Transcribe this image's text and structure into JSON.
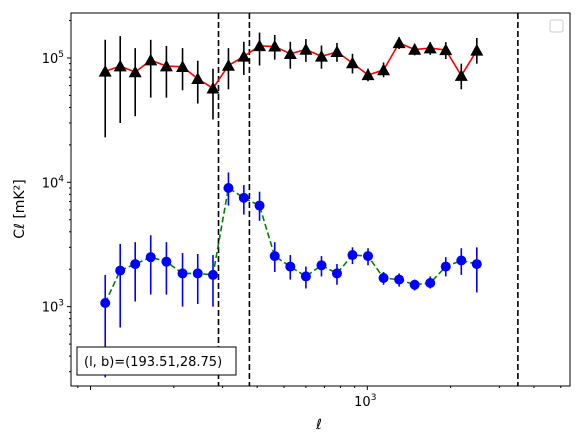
{
  "chart_data": {
    "type": "scatter",
    "title": "",
    "xlabel": "ℓ",
    "ylabel": "Cℓ  [mK²]",
    "xscale": "log",
    "yscale": "log",
    "xlim": [
      85,
      5400
    ],
    "ylim": [
      230,
      230000
    ],
    "x_tick_labels": [
      {
        "value": 1000,
        "mant": "10",
        "exp": "3"
      }
    ],
    "y_tick_labels": [
      {
        "value": 1000,
        "mant": "10",
        "exp": "3"
      },
      {
        "value": 10000,
        "mant": "10",
        "exp": "4"
      },
      {
        "value": 100000,
        "mant": "10",
        "exp": "5"
      }
    ],
    "grid": false,
    "legend": "top-right (empty)",
    "vlines": [
      290,
      375,
      3500
    ],
    "annotation": "(l, b)=(193.51,28.75)",
    "series": [
      {
        "marker": "triangle",
        "marker_color": "#000000",
        "line_color": "#ff0000",
        "line_style": "solid",
        "points": [
          {
            "x": 113,
            "y": 78000,
            "lo": 23000,
            "hi": 140000
          },
          {
            "x": 128,
            "y": 86000,
            "lo": 30000,
            "hi": 150000
          },
          {
            "x": 145,
            "y": 77000,
            "lo": 34000,
            "hi": 120000
          },
          {
            "x": 165,
            "y": 96000,
            "lo": 48000,
            "hi": 140000
          },
          {
            "x": 188,
            "y": 86000,
            "lo": 48000,
            "hi": 125000
          },
          {
            "x": 215,
            "y": 85000,
            "lo": 55000,
            "hi": 120000
          },
          {
            "x": 244,
            "y": 68000,
            "lo": 43000,
            "hi": 95000
          },
          {
            "x": 277,
            "y": 57000,
            "lo": 32000,
            "hi": 82000
          },
          {
            "x": 315,
            "y": 87000,
            "lo": 56000,
            "hi": 120000
          },
          {
            "x": 358,
            "y": 103000,
            "lo": 73000,
            "hi": 135000
          },
          {
            "x": 408,
            "y": 125000,
            "lo": 87000,
            "hi": 160000
          },
          {
            "x": 463,
            "y": 124000,
            "lo": 97000,
            "hi": 153000
          },
          {
            "x": 527,
            "y": 108000,
            "lo": 82000,
            "hi": 135000
          },
          {
            "x": 600,
            "y": 117000,
            "lo": 93000,
            "hi": 142000
          },
          {
            "x": 683,
            "y": 103000,
            "lo": 82000,
            "hi": 126000
          },
          {
            "x": 777,
            "y": 112000,
            "lo": 93000,
            "hi": 132000
          },
          {
            "x": 884,
            "y": 91000,
            "lo": 75000,
            "hi": 108000
          },
          {
            "x": 1006,
            "y": 73000,
            "lo": 65000,
            "hi": 82000
          },
          {
            "x": 1145,
            "y": 80000,
            "lo": 70000,
            "hi": 92000
          },
          {
            "x": 1303,
            "y": 132000,
            "lo": 118000,
            "hi": 147000
          },
          {
            "x": 1483,
            "y": 117000,
            "lo": 105000,
            "hi": 130000
          },
          {
            "x": 1688,
            "y": 120000,
            "lo": 106000,
            "hi": 134000
          },
          {
            "x": 1921,
            "y": 116000,
            "lo": 98000,
            "hi": 134000
          },
          {
            "x": 2186,
            "y": 72000,
            "lo": 56000,
            "hi": 90000
          },
          {
            "x": 2487,
            "y": 115000,
            "lo": 90000,
            "hi": 145000
          }
        ]
      },
      {
        "marker": "circle",
        "marker_color": "#0000ff",
        "line_color": "#008000",
        "line_style": "dashed",
        "points": [
          {
            "x": 113,
            "y": 1070,
            "lo": 270,
            "hi": 1800
          },
          {
            "x": 128,
            "y": 1950,
            "lo": 680,
            "hi": 3200
          },
          {
            "x": 145,
            "y": 2200,
            "lo": 1100,
            "hi": 3300
          },
          {
            "x": 165,
            "y": 2500,
            "lo": 1250,
            "hi": 3750
          },
          {
            "x": 188,
            "y": 2300,
            "lo": 1250,
            "hi": 3300
          },
          {
            "x": 215,
            "y": 1850,
            "lo": 1000,
            "hi": 2700
          },
          {
            "x": 244,
            "y": 1850,
            "lo": 1050,
            "hi": 2650
          },
          {
            "x": 277,
            "y": 1800,
            "lo": 1000,
            "hi": 2600
          },
          {
            "x": 315,
            "y": 9000,
            "lo": 6500,
            "hi": 12000
          },
          {
            "x": 358,
            "y": 7500,
            "lo": 5500,
            "hi": 9500
          },
          {
            "x": 408,
            "y": 6500,
            "lo": 4900,
            "hi": 8400
          },
          {
            "x": 463,
            "y": 2550,
            "lo": 1900,
            "hi": 3300
          },
          {
            "x": 527,
            "y": 2100,
            "lo": 1650,
            "hi": 2600
          },
          {
            "x": 600,
            "y": 1750,
            "lo": 1400,
            "hi": 2100
          },
          {
            "x": 683,
            "y": 2150,
            "lo": 1750,
            "hi": 2550
          },
          {
            "x": 777,
            "y": 1850,
            "lo": 1500,
            "hi": 2200
          },
          {
            "x": 884,
            "y": 2600,
            "lo": 2200,
            "hi": 3000
          },
          {
            "x": 1006,
            "y": 2550,
            "lo": 2150,
            "hi": 2950
          },
          {
            "x": 1145,
            "y": 1700,
            "lo": 1500,
            "hi": 1900
          },
          {
            "x": 1303,
            "y": 1650,
            "lo": 1450,
            "hi": 1850
          },
          {
            "x": 1483,
            "y": 1500,
            "lo": 1350,
            "hi": 1650
          },
          {
            "x": 1688,
            "y": 1550,
            "lo": 1400,
            "hi": 1750
          },
          {
            "x": 1921,
            "y": 2100,
            "lo": 1750,
            "hi": 2500
          },
          {
            "x": 2186,
            "y": 2350,
            "lo": 1800,
            "hi": 2950
          },
          {
            "x": 2487,
            "y": 2200,
            "lo": 1300,
            "hi": 3000
          }
        ]
      }
    ]
  }
}
